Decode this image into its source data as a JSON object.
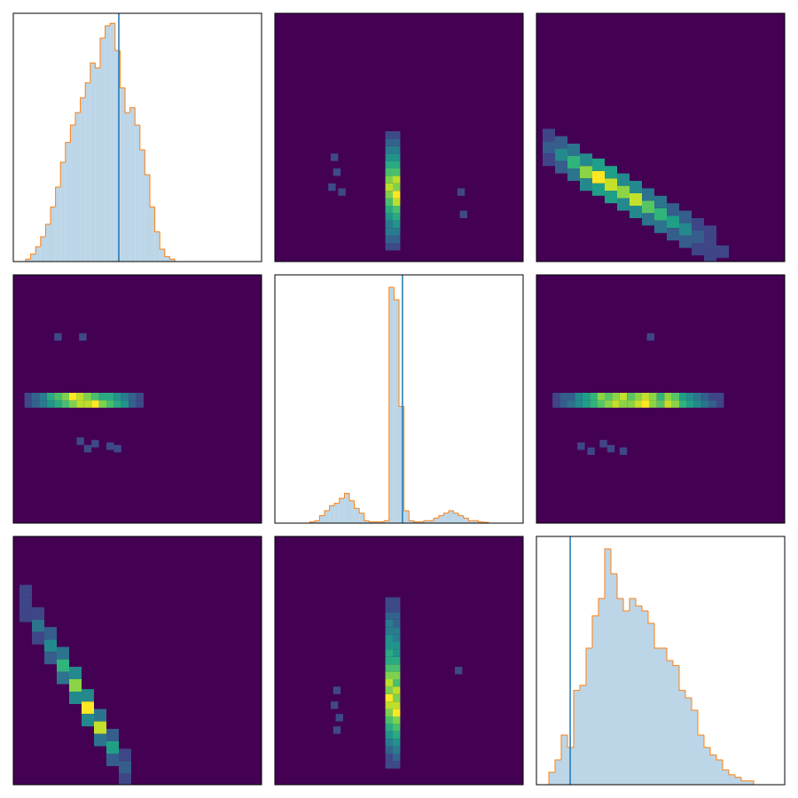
{
  "chart_data": [
    {
      "type": "histogram",
      "xlim": [
        0,
        100
      ],
      "ylim": [
        0,
        100
      ],
      "bins": [
        5,
        7,
        9,
        11,
        13,
        15,
        17,
        19,
        21,
        23,
        25,
        27,
        29,
        31,
        33,
        35,
        37,
        39,
        41,
        43,
        45,
        47,
        49,
        51,
        53,
        55,
        57,
        59,
        61,
        63,
        65
      ],
      "counts": [
        1,
        3,
        6,
        10,
        15,
        22,
        30,
        40,
        48,
        55,
        60,
        66,
        72,
        80,
        78,
        90,
        95,
        96,
        85,
        70,
        60,
        62,
        55,
        45,
        35,
        22,
        12,
        5,
        2,
        1
      ],
      "marker": 42.5,
      "color": "#bcd6e8",
      "edge_color": "#ff7f0e",
      "marker_color": "#1f77b4"
    },
    {
      "type": "hist2d",
      "xlim": [
        0,
        100
      ],
      "ylim": [
        0,
        100
      ],
      "bin_size": 3,
      "colormap": "viridis",
      "x": [
        46,
        46,
        46,
        46,
        46,
        46,
        46,
        46,
        46,
        46,
        46,
        46,
        46,
        46,
        46,
        46,
        49,
        49,
        49,
        49,
        49,
        49,
        49,
        49,
        49,
        49,
        49,
        49,
        49,
        49,
        49,
        49,
        24,
        25,
        23,
        27,
        75,
        76
      ],
      "y": [
        6,
        9,
        12,
        15,
        18,
        21,
        24,
        27,
        30,
        33,
        36,
        39,
        42,
        45,
        48,
        51,
        6,
        9,
        12,
        15,
        18,
        21,
        24,
        27,
        30,
        33,
        36,
        39,
        42,
        45,
        48,
        51,
        42,
        36,
        30,
        28,
        28,
        19
      ],
      "values": [
        1,
        2,
        3,
        3,
        4,
        5,
        6,
        7,
        8,
        7,
        6,
        5,
        4,
        3,
        2,
        1,
        1,
        2,
        3,
        4,
        5,
        6,
        8,
        9,
        7,
        8,
        6,
        5,
        4,
        3,
        2,
        1,
        1,
        1,
        1,
        1,
        1,
        1
      ]
    },
    {
      "type": "hist2d",
      "xlim": [
        0,
        100
      ],
      "ylim": [
        0,
        100
      ],
      "bin_size": 5,
      "colormap": "viridis",
      "x": [
        5,
        10,
        15,
        20,
        25,
        30,
        35,
        40,
        45,
        50,
        55,
        60,
        65,
        70,
        75,
        5,
        10,
        15,
        20,
        25,
        30,
        35,
        40,
        45,
        50,
        55,
        60,
        65,
        70,
        5,
        10,
        15,
        20,
        25,
        30,
        35,
        40,
        45,
        50,
        55,
        60,
        65,
        70
      ],
      "y": [
        46,
        43,
        40,
        36,
        34,
        31,
        28,
        25,
        22,
        19,
        16,
        13,
        10,
        7,
        4,
        51,
        48,
        45,
        41,
        39,
        36,
        33,
        30,
        27,
        24,
        21,
        18,
        15,
        12,
        41,
        38,
        35,
        31,
        29,
        26,
        23,
        20,
        17,
        14,
        11,
        8,
        5,
        2
      ],
      "values": [
        2,
        4,
        6,
        8,
        10,
        9,
        8,
        9,
        7,
        6,
        5,
        4,
        2,
        1,
        1,
        1,
        2,
        3,
        4,
        5,
        5,
        4,
        4,
        3,
        3,
        2,
        2,
        1,
        1,
        1,
        2,
        3,
        4,
        5,
        5,
        4,
        4,
        3,
        3,
        2,
        2,
        1,
        1
      ]
    },
    {
      "type": "hist2d",
      "xlim": [
        0,
        100
      ],
      "ylim": [
        0,
        100
      ],
      "bin_size": 3,
      "colormap": "viridis",
      "x": [
        6,
        9,
        12,
        15,
        18,
        21,
        24,
        27,
        30,
        33,
        36,
        39,
        42,
        45,
        48,
        51,
        6,
        9,
        12,
        15,
        18,
        21,
        24,
        27,
        30,
        33,
        36,
        39,
        42,
        45,
        48,
        51,
        27,
        30,
        33,
        39,
        42,
        18,
        28
      ],
      "y": [
        48,
        48,
        48,
        48,
        48,
        48,
        48,
        48,
        48,
        48,
        48,
        48,
        48,
        48,
        48,
        48,
        51,
        51,
        51,
        51,
        51,
        51,
        51,
        51,
        51,
        51,
        51,
        51,
        51,
        51,
        51,
        51,
        33,
        30,
        32,
        31,
        30,
        75,
        75
      ],
      "values": [
        1,
        2,
        3,
        4,
        5,
        6,
        7,
        8,
        8,
        9,
        7,
        6,
        5,
        4,
        2,
        1,
        1,
        2,
        3,
        5,
        6,
        7,
        9,
        8,
        7,
        6,
        5,
        5,
        4,
        3,
        2,
        1,
        1,
        1,
        1,
        1,
        1,
        1,
        1
      ]
    },
    {
      "type": "histogram",
      "xlim": [
        0,
        100
      ],
      "ylim": [
        0,
        100
      ],
      "bins": [
        14,
        16,
        18,
        20,
        22,
        24,
        26,
        28,
        30,
        32,
        34,
        36,
        38,
        40,
        42,
        44,
        46,
        48,
        50,
        52,
        54,
        56,
        58,
        60,
        62,
        64,
        66,
        68,
        70,
        72,
        74,
        76,
        78,
        80,
        82,
        84,
        86
      ],
      "counts": [
        0.5,
        1,
        3,
        5,
        7,
        8,
        10,
        12,
        9,
        6,
        4,
        1,
        0.5,
        0.5,
        0.5,
        1,
        95,
        90,
        47,
        5,
        1,
        0.5,
        0.5,
        1,
        1,
        2,
        3,
        4,
        5,
        4,
        3,
        2,
        1,
        1,
        0.5,
        0.3
      ],
      "marker": 51.4,
      "color": "#bcd6e8",
      "edge_color": "#ff7f0e",
      "marker_color": "#1f77b4"
    },
    {
      "type": "hist2d",
      "xlim": [
        0,
        100
      ],
      "ylim": [
        0,
        100
      ],
      "bin_size": 3,
      "colormap": "viridis",
      "x": [
        8,
        11,
        14,
        17,
        20,
        23,
        26,
        29,
        32,
        35,
        38,
        41,
        44,
        47,
        50,
        53,
        56,
        59,
        62,
        65,
        68,
        71,
        74,
        8,
        11,
        14,
        17,
        20,
        23,
        26,
        29,
        32,
        35,
        38,
        41,
        44,
        47,
        50,
        53,
        56,
        59,
        62,
        65,
        68,
        71,
        74,
        18,
        22,
        27,
        30,
        35,
        46
      ],
      "y": [
        48,
        48,
        48,
        48,
        48,
        48,
        48,
        48,
        48,
        48,
        48,
        48,
        48,
        48,
        48,
        48,
        48,
        48,
        48,
        48,
        48,
        48,
        48,
        51,
        51,
        51,
        51,
        51,
        51,
        51,
        51,
        51,
        51,
        51,
        51,
        51,
        51,
        51,
        51,
        51,
        51,
        51,
        51,
        51,
        51,
        51,
        31,
        29,
        32,
        30,
        29,
        75
      ],
      "values": [
        1,
        2,
        3,
        4,
        5,
        6,
        7,
        8,
        9,
        8,
        8,
        9,
        10,
        8,
        7,
        9,
        8,
        6,
        5,
        4,
        3,
        2,
        1,
        1,
        2,
        2,
        4,
        5,
        6,
        8,
        7,
        8,
        9,
        7,
        8,
        9,
        8,
        6,
        8,
        7,
        5,
        4,
        3,
        2,
        1,
        1,
        1,
        1,
        1,
        1,
        1,
        1
      ]
    },
    {
      "type": "hist2d",
      "xlim": [
        0,
        100
      ],
      "ylim": [
        0,
        100
      ],
      "bin_size": 5,
      "colormap": "viridis",
      "x": [
        5,
        10,
        15,
        20,
        25,
        30,
        35,
        40,
        45,
        5,
        10,
        15,
        20,
        25,
        30,
        35,
        40,
        45,
        5,
        10,
        15,
        20,
        25,
        30,
        35,
        40,
        45
      ],
      "y": [
        73,
        64,
        56,
        48,
        40,
        31,
        23,
        15,
        7,
        78,
        69,
        61,
        53,
        45,
        36,
        28,
        20,
        12,
        68,
        59,
        51,
        43,
        35,
        26,
        18,
        10,
        2
      ],
      "values": [
        1,
        3,
        4,
        6,
        8,
        10,
        9,
        5,
        2,
        1,
        1,
        2,
        3,
        4,
        4,
        3,
        2,
        1,
        1,
        1,
        2,
        3,
        4,
        4,
        3,
        2,
        1
      ]
    },
    {
      "type": "hist2d",
      "xlim": [
        0,
        100
      ],
      "ylim": [
        0,
        100
      ],
      "bin_size": 3,
      "colormap": "viridis",
      "x": [
        46,
        46,
        46,
        46,
        46,
        46,
        46,
        46,
        46,
        46,
        46,
        46,
        46,
        46,
        46,
        46,
        46,
        46,
        46,
        46,
        46,
        46,
        46,
        49,
        49,
        49,
        49,
        49,
        49,
        49,
        49,
        49,
        49,
        49,
        49,
        49,
        49,
        49,
        49,
        49,
        49,
        49,
        49,
        49,
        49,
        49,
        25,
        24,
        26,
        25,
        74
      ],
      "y": [
        8,
        11,
        14,
        17,
        20,
        23,
        26,
        29,
        32,
        35,
        38,
        41,
        44,
        47,
        50,
        53,
        56,
        59,
        62,
        65,
        68,
        71,
        74,
        8,
        11,
        14,
        17,
        20,
        23,
        26,
        29,
        32,
        35,
        38,
        41,
        44,
        47,
        50,
        53,
        56,
        59,
        62,
        65,
        68,
        71,
        74,
        38,
        32,
        27,
        22,
        46
      ],
      "values": [
        1,
        1,
        2,
        3,
        4,
        5,
        6,
        7,
        8,
        9,
        7,
        8,
        7,
        6,
        5,
        5,
        4,
        4,
        3,
        3,
        2,
        1,
        1,
        1,
        2,
        3,
        4,
        5,
        6,
        7,
        9,
        8,
        7,
        8,
        6,
        7,
        6,
        5,
        4,
        4,
        3,
        3,
        2,
        2,
        1,
        1,
        1,
        1,
        1,
        1,
        1
      ]
    },
    {
      "type": "histogram",
      "xlim": [
        0,
        100
      ],
      "ylim": [
        0,
        100
      ],
      "bins": [
        5,
        7.5,
        10,
        12.5,
        15,
        17.5,
        20,
        22.5,
        25,
        27.5,
        30,
        32.5,
        35,
        37.5,
        40,
        42.5,
        45,
        47.5,
        50,
        52.5,
        55,
        57.5,
        60,
        62.5,
        65,
        67.5,
        70,
        72.5,
        75,
        77.5,
        80,
        82.5,
        85,
        87.5
      ],
      "counts": [
        5,
        10,
        20,
        15,
        38,
        40,
        55,
        68,
        75,
        95,
        85,
        75,
        70,
        75,
        72,
        70,
        65,
        55,
        55,
        50,
        48,
        38,
        35,
        30,
        20,
        15,
        12,
        10,
        6,
        4,
        3,
        1.5,
        1.5
      ],
      "marker": 13.6,
      "color": "#bcd6e8",
      "edge_color": "#ff7f0e",
      "marker_color": "#1f77b4"
    }
  ]
}
